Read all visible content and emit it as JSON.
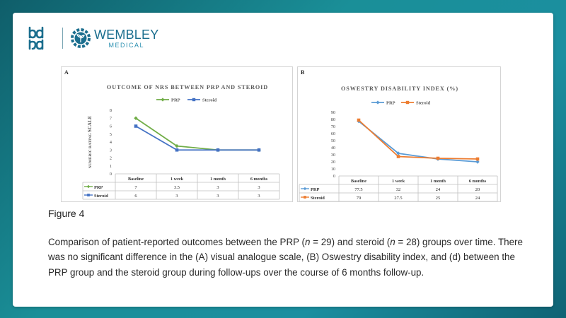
{
  "brand": {
    "left_logo_icon": "bd-logo-icon",
    "wembley_name": "WEMBLEY",
    "wembley_sub": "MEDICAL",
    "wembley_icon": "gear-plant-icon",
    "colors": {
      "brand": "#1b6e8e",
      "background": "#1a8f98"
    }
  },
  "figure": {
    "title": "Figure 4",
    "caption": {
      "p1": "Comparison of patient-reported outcomes between the PRP (",
      "n1": "n",
      "p2": " = 29) and steroid (",
      "n2": "n",
      "p3": " = 28) groups over time. There was no significant difference in the (A) visual analogue scale, (B) Oswestry disability index, and (d) between the PRP group and the steroid group during follow-ups over the course of 6 months follow-up."
    }
  },
  "chart_data": [
    {
      "panel": "A",
      "type": "line",
      "title": "OUTCOME OF NRS BETWEEN PRP AND STEROID",
      "ylabel_prefix": "NUMERIC RATING ",
      "ylabel_bold": "SCALE",
      "xlabel": "",
      "categories": [
        "Baseline",
        "1 week",
        "1 month",
        "6 months"
      ],
      "ylim": [
        0,
        8
      ],
      "yticks": [
        0,
        1,
        2,
        3,
        4,
        5,
        6,
        7,
        8
      ],
      "grid": false,
      "legend_position": "top",
      "series": [
        {
          "name": "PRP",
          "color": "#70ad47",
          "marker": "diamond",
          "values": [
            7,
            3.5,
            3,
            3
          ],
          "labels": [
            "7",
            "3.5",
            "3",
            "3"
          ]
        },
        {
          "name": "Steroid",
          "color": "#4472c4",
          "marker": "square",
          "values": [
            6,
            3,
            3,
            3
          ],
          "labels": [
            "6",
            "3",
            "3",
            "3"
          ]
        }
      ]
    },
    {
      "panel": "B",
      "type": "line",
      "title": "OSWESTRY DISABILITY INDEX (%)",
      "xlabel": "",
      "ylabel": "",
      "categories": [
        "Baseline",
        "1 week",
        "1 month",
        "6 months"
      ],
      "ylim": [
        0,
        90
      ],
      "yticks": [
        0,
        10,
        20,
        30,
        40,
        50,
        60,
        70,
        80,
        90
      ],
      "grid": false,
      "legend_position": "top",
      "series": [
        {
          "name": "PRP",
          "color": "#5b9bd5",
          "marker": "diamond",
          "values": [
            77.5,
            32,
            24,
            20
          ],
          "labels": [
            "77.5",
            "32",
            "24",
            "20"
          ]
        },
        {
          "name": "Steroid",
          "color": "#ed7d31",
          "marker": "square",
          "values": [
            79,
            27.5,
            25,
            24
          ],
          "labels": [
            "79",
            "27.5",
            "25",
            "24"
          ]
        }
      ]
    }
  ]
}
